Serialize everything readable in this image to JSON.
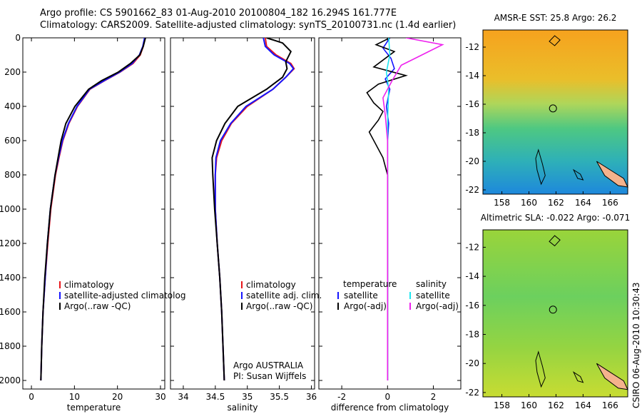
{
  "header": {
    "line1": "Argo profile: CS 5901662_83 01-Aug-2010 20100804_182 16.294S 161.777E",
    "line2": "Climatology: CARS2009. Satellite-adjusted climatology: synTS_20100731.nc (1.4d earlier)"
  },
  "colors": {
    "climatology": "#e8161b",
    "satellite": "#1515ff",
    "argo": "#000000",
    "sal_satellite": "#1ee6f0",
    "sal_argo": "#ee22ee",
    "land": "#f4b28c"
  },
  "chart_data": [
    {
      "type": "line",
      "xlabel": "temperature",
      "ylabel": "",
      "xlim": [
        -2,
        31
      ],
      "ylim": [
        2050,
        0
      ],
      "y_inverted": true,
      "xticks": [
        0,
        10,
        20,
        30
      ],
      "yticks": [
        0,
        200,
        400,
        600,
        800,
        1000,
        1200,
        1400,
        1600,
        1800,
        2000
      ],
      "legend": [
        "climatology",
        "satellite-adjusted climatolog",
        "Argo(..raw -QC)"
      ],
      "series": [
        {
          "name": "climatology",
          "color": "#e8161b",
          "x": [
            26.4,
            26.0,
            25.3,
            23.6,
            20.6,
            17.0,
            13.6,
            10.7,
            8.7,
            7.3,
            6.4,
            5.6,
            4.5,
            3.8,
            3.2,
            2.7,
            2.4,
            2.2
          ],
          "y": [
            0,
            50,
            100,
            150,
            200,
            250,
            300,
            400,
            500,
            600,
            700,
            800,
            1000,
            1200,
            1400,
            1600,
            1800,
            2000
          ]
        },
        {
          "name": "satellite-adjusted climatolog",
          "color": "#1515ff",
          "x": [
            26.3,
            25.9,
            25.1,
            23.4,
            20.5,
            16.9,
            13.5,
            10.6,
            8.6,
            7.2,
            6.3,
            5.5,
            4.4,
            3.7,
            3.2,
            2.7,
            2.4,
            2.2
          ],
          "y": [
            0,
            50,
            100,
            150,
            200,
            250,
            300,
            400,
            500,
            600,
            700,
            800,
            1000,
            1200,
            1400,
            1600,
            1800,
            2000
          ]
        },
        {
          "name": "Argo(..raw -QC)",
          "color": "#000000",
          "x": [
            26.5,
            26.0,
            25.2,
            23.0,
            20.2,
            16.3,
            13.3,
            10.1,
            8.0,
            6.9,
            6.2,
            5.5,
            4.4,
            3.7,
            3.1,
            2.7,
            2.4,
            2.2
          ],
          "y": [
            0,
            50,
            100,
            150,
            200,
            250,
            300,
            400,
            500,
            600,
            700,
            800,
            1000,
            1200,
            1400,
            1600,
            1800,
            2000
          ]
        }
      ]
    },
    {
      "type": "line",
      "xlabel": "salinity",
      "xlim": [
        33.8,
        36.05
      ],
      "ylim": [
        2050,
        0
      ],
      "y_inverted": true,
      "xticks": [
        34,
        34.5,
        35,
        35.5,
        36
      ],
      "legend": [
        "climatology",
        "satellite adj. clim.",
        "Argo(..raw -QC)"
      ],
      "annotation": [
        "Argo AUSTRALIA",
        "PI: Susan Wijffels"
      ],
      "series": [
        {
          "name": "climatology",
          "color": "#e8161b",
          "x": [
            35.28,
            35.3,
            35.45,
            35.68,
            35.73,
            35.6,
            35.4,
            35.0,
            34.75,
            34.6,
            34.52,
            34.5,
            34.5,
            34.53,
            34.57,
            34.6,
            34.62,
            34.64
          ],
          "y": [
            0,
            50,
            100,
            150,
            180,
            230,
            300,
            400,
            500,
            600,
            700,
            800,
            1000,
            1200,
            1400,
            1600,
            1800,
            2000
          ]
        },
        {
          "name": "satellite adj. clim.",
          "color": "#1515ff",
          "x": [
            35.25,
            35.28,
            35.42,
            35.66,
            35.72,
            35.6,
            35.4,
            34.98,
            34.74,
            34.58,
            34.51,
            34.5,
            34.5,
            34.53,
            34.57,
            34.6,
            34.62,
            34.64
          ],
          "y": [
            0,
            50,
            100,
            150,
            180,
            230,
            300,
            400,
            500,
            600,
            700,
            800,
            1000,
            1200,
            1400,
            1600,
            1800,
            2000
          ]
        },
        {
          "name": "Argo(..raw -QC)",
          "color": "#000000",
          "x": [
            35.3,
            35.55,
            35.68,
            35.6,
            35.62,
            35.55,
            35.3,
            34.85,
            34.65,
            34.52,
            34.45,
            34.46,
            34.49,
            34.53,
            34.57,
            34.6,
            34.62,
            34.64
          ],
          "y": [
            0,
            30,
            80,
            140,
            180,
            230,
            300,
            400,
            500,
            600,
            700,
            800,
            1000,
            1200,
            1400,
            1600,
            1800,
            2000
          ]
        }
      ]
    },
    {
      "type": "line",
      "xlabel": "difference from climatology",
      "xlim": [
        -3.0,
        3.2
      ],
      "ylim": [
        2050,
        0
      ],
      "y_inverted": true,
      "xticks": [
        -2,
        0,
        2
      ],
      "legend": [
        "temperature",
        "satellite",
        "Argo(-adj)",
        "salinity",
        "satellite",
        "Argo(-adj)"
      ],
      "series": [
        {
          "name": "satellite",
          "group": "temperature",
          "color": "#1515ff",
          "x": [
            0.1,
            -0.2,
            0.15,
            0.3,
            -0.1,
            0.1,
            -0.05,
            0.05,
            0,
            0,
            0,
            0,
            0,
            0
          ],
          "y": [
            0,
            60,
            120,
            180,
            240,
            300,
            400,
            500,
            600,
            800,
            1000,
            1400,
            1800,
            2000
          ]
        },
        {
          "name": "Argo(-adj)",
          "group": "temperature",
          "color": "#000000",
          "x": [
            0.1,
            -0.5,
            0.3,
            -0.2,
            -0.6,
            0.8,
            -0.4,
            -0.9,
            -0.6,
            -0.2,
            -0.4,
            -0.8,
            -0.2,
            0,
            0,
            0,
            0
          ],
          "y": [
            0,
            40,
            80,
            130,
            170,
            220,
            270,
            320,
            380,
            430,
            480,
            550,
            700,
            800,
            1000,
            1500,
            2000
          ]
        },
        {
          "name": "satellite",
          "group": "salinity",
          "color": "#1ee6f0",
          "x": [
            0.05,
            0.1,
            -0.05,
            0.05,
            0,
            0,
            0,
            0,
            0
          ],
          "y": [
            0,
            100,
            200,
            300,
            500,
            800,
            1200,
            1600,
            2000
          ]
        },
        {
          "name": "Argo(-adj)",
          "group": "salinity",
          "color": "#ee22ee",
          "x": [
            0.8,
            2.4,
            1.5,
            0.6,
            0.2,
            -0.2,
            -0.1,
            0,
            0,
            0
          ],
          "y": [
            0,
            40,
            100,
            160,
            250,
            350,
            450,
            600,
            1000,
            2000
          ]
        }
      ]
    },
    {
      "type": "heatmap",
      "title": "AMSR-E SST: 25.8 Argo: 26.2",
      "xlim": [
        156.6,
        167.3
      ],
      "ylim": [
        -22.3,
        -10.8
      ],
      "xticks": [
        158,
        160,
        162,
        164,
        166
      ],
      "yticks": [
        -12,
        -14,
        -16,
        -18,
        -20,
        -22
      ],
      "marker": {
        "lon": 161.777,
        "lat": -16.294
      }
    },
    {
      "type": "heatmap",
      "title": "Altimetric SLA: -0.022 Argo: -0.071",
      "xlim": [
        156.6,
        167.3
      ],
      "ylim": [
        -22.3,
        -10.8
      ],
      "xticks": [
        158,
        160,
        162,
        164,
        166
      ],
      "yticks": [
        -12,
        -14,
        -16,
        -18,
        -20,
        -22
      ],
      "marker": {
        "lon": 161.777,
        "lat": -16.294
      }
    }
  ],
  "footer_stamp": "CSIRO 06-Aug-2010 10:30:43"
}
